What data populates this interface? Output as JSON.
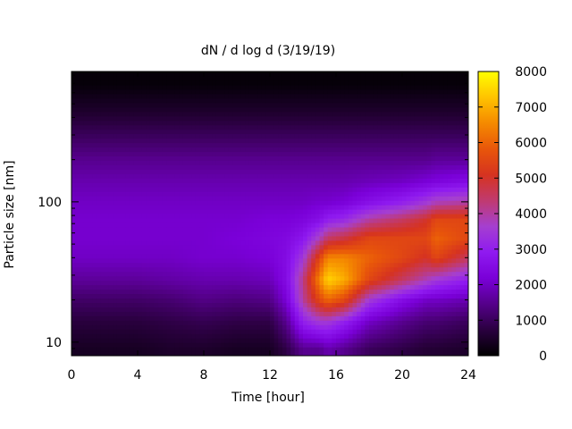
{
  "chart_data": {
    "type": "heatmap",
    "title": "dN / d log d (3/19/19)",
    "xlabel": "Time [hour]",
    "ylabel": "Particle size [nm]",
    "x_range": [
      0,
      24
    ],
    "x_ticks": [
      "0",
      "4",
      "8",
      "12",
      "16",
      "20",
      "24"
    ],
    "y_scale": "log",
    "y_range": [
      8,
      850
    ],
    "y_ticks": [
      {
        "value": 10,
        "label": "10"
      },
      {
        "value": 100,
        "label": "100"
      }
    ],
    "colorbar": {
      "range": [
        0,
        8000
      ],
      "ticks": [
        "0",
        "1000",
        "2000",
        "3000",
        "4000",
        "5000",
        "6000",
        "7000",
        "8000"
      ],
      "palette": [
        "#000000",
        "#2a003f",
        "#55008a",
        "#7a00d8",
        "#8f1af0",
        "#a53fd0",
        "#c03a70",
        "#d63320",
        "#e8560a",
        "#f58a00",
        "#ffc300",
        "#ffff00"
      ]
    },
    "size_axis_nm": [
      9,
      14,
      20,
      28,
      40,
      55,
      75,
      100,
      140,
      200,
      300,
      450,
      700
    ],
    "hours": [
      0,
      2,
      4,
      6,
      8,
      10,
      12,
      13,
      14,
      15,
      15.5,
      16.5,
      18,
      20,
      21.5,
      22,
      24
    ],
    "concentration": [
      [
        400,
        700,
        1100,
        1600,
        2000,
        2100,
        2100,
        2000,
        1800,
        1500,
        1000,
        500,
        100
      ],
      [
        400,
        700,
        1100,
        1600,
        2000,
        2100,
        2100,
        2000,
        1800,
        1500,
        1000,
        500,
        100
      ],
      [
        400,
        700,
        1100,
        1600,
        2000,
        2100,
        2100,
        2000,
        1800,
        1500,
        1000,
        500,
        100
      ],
      [
        500,
        800,
        1200,
        1700,
        2000,
        2100,
        2100,
        2000,
        1800,
        1500,
        1000,
        500,
        100
      ],
      [
        500,
        900,
        1400,
        1800,
        2100,
        2100,
        2100,
        2000,
        1800,
        1500,
        1000,
        500,
        100
      ],
      [
        400,
        800,
        1300,
        1800,
        2100,
        2200,
        2100,
        2000,
        1800,
        1500,
        1000,
        500,
        100
      ],
      [
        400,
        800,
        1400,
        1900,
        2200,
        2300,
        2200,
        2000,
        1800,
        1500,
        1000,
        500,
        100
      ],
      [
        800,
        1500,
        2200,
        2500,
        2500,
        2400,
        2200,
        2000,
        1800,
        1500,
        1000,
        500,
        100
      ],
      [
        1500,
        3000,
        4000,
        4200,
        3500,
        2800,
        2300,
        2000,
        1800,
        1500,
        1000,
        500,
        100
      ],
      [
        1500,
        3500,
        5500,
        6500,
        5500,
        3800,
        2600,
        2100,
        1800,
        1500,
        1000,
        500,
        100
      ],
      [
        1800,
        3500,
        6000,
        7500,
        6500,
        4500,
        3000,
        2100,
        1800,
        1500,
        1000,
        500,
        100
      ],
      [
        1500,
        3000,
        5500,
        7000,
        6500,
        4800,
        3200,
        2200,
        1800,
        1500,
        1000,
        500,
        100
      ],
      [
        1000,
        2000,
        3500,
        5500,
        6000,
        5500,
        4000,
        2600,
        1900,
        1500,
        1000,
        500,
        100
      ],
      [
        800,
        1500,
        2500,
        4500,
        5500,
        5500,
        4500,
        3000,
        2000,
        1500,
        1000,
        500,
        100
      ],
      [
        600,
        1200,
        2000,
        3800,
        5000,
        5500,
        5000,
        3500,
        2200,
        1500,
        1000,
        500,
        100
      ],
      [
        600,
        1200,
        2000,
        3500,
        5500,
        6000,
        5500,
        3800,
        2300,
        1600,
        1000,
        500,
        100
      ],
      [
        500,
        1000,
        1800,
        3000,
        4500,
        5500,
        5500,
        4000,
        2500,
        1600,
        1000,
        500,
        100
      ]
    ]
  }
}
